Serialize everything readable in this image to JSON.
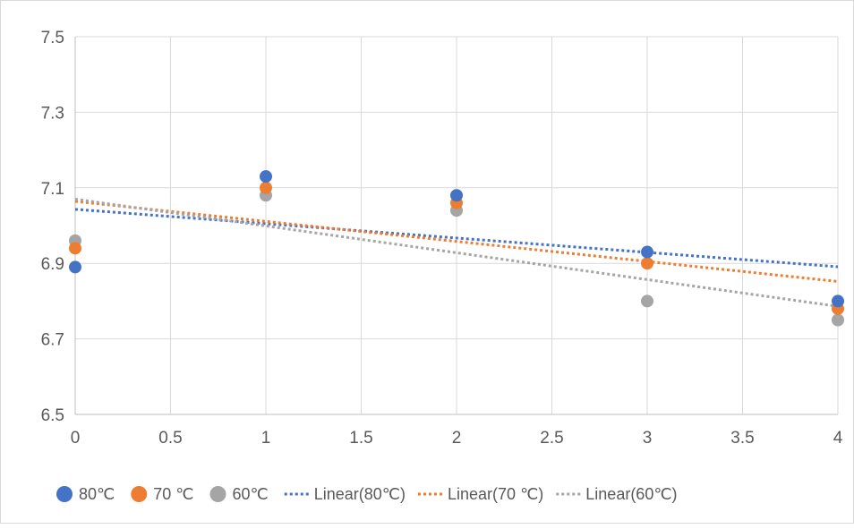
{
  "chart_data": {
    "type": "scatter",
    "title": "",
    "xlabel": "",
    "ylabel": "",
    "xlim": [
      0,
      4
    ],
    "ylim": [
      6.5,
      7.5
    ],
    "x_ticks": [
      0,
      0.5,
      1,
      1.5,
      2,
      2.5,
      3,
      3.5,
      4
    ],
    "y_ticks": [
      6.5,
      6.7,
      6.9,
      7.1,
      7.3,
      7.5
    ],
    "x_tick_labels": [
      "0",
      "0.5",
      "1",
      "1.5",
      "2",
      "2.5",
      "3",
      "3.5",
      "4"
    ],
    "y_tick_labels": [
      "6.5",
      "6.7",
      "6.9",
      "7.1",
      "7.3",
      "7.5"
    ],
    "grid": true,
    "legend_position": "bottom",
    "series": [
      {
        "name": "80℃",
        "color": "#4472C4",
        "x": [
          0,
          1,
          2,
          3,
          4
        ],
        "y": [
          6.89,
          7.13,
          7.08,
          6.93,
          6.8
        ]
      },
      {
        "name": "70 ℃",
        "color": "#ED7D31",
        "x": [
          0,
          1,
          2,
          3,
          4
        ],
        "y": [
          6.94,
          7.1,
          7.06,
          6.9,
          6.78
        ]
      },
      {
        "name": "60℃",
        "color": "#A5A5A5",
        "x": [
          0,
          1,
          2,
          3,
          4
        ],
        "y": [
          6.96,
          7.08,
          7.04,
          6.8,
          6.75
        ]
      }
    ],
    "trendlines": [
      {
        "name": "Linear(80℃)",
        "color": "#4472C4",
        "type": "linear",
        "x": [
          0,
          4
        ],
        "y": [
          7.043,
          6.891
        ]
      },
      {
        "name": "Linear(70 ℃)",
        "color": "#ED7D31",
        "type": "linear",
        "x": [
          0,
          4
        ],
        "y": [
          7.064,
          6.852
        ]
      },
      {
        "name": "Linear(60℃)",
        "color": "#A5A5A5",
        "type": "linear",
        "x": [
          0,
          4
        ],
        "y": [
          7.07,
          6.786
        ]
      }
    ]
  }
}
